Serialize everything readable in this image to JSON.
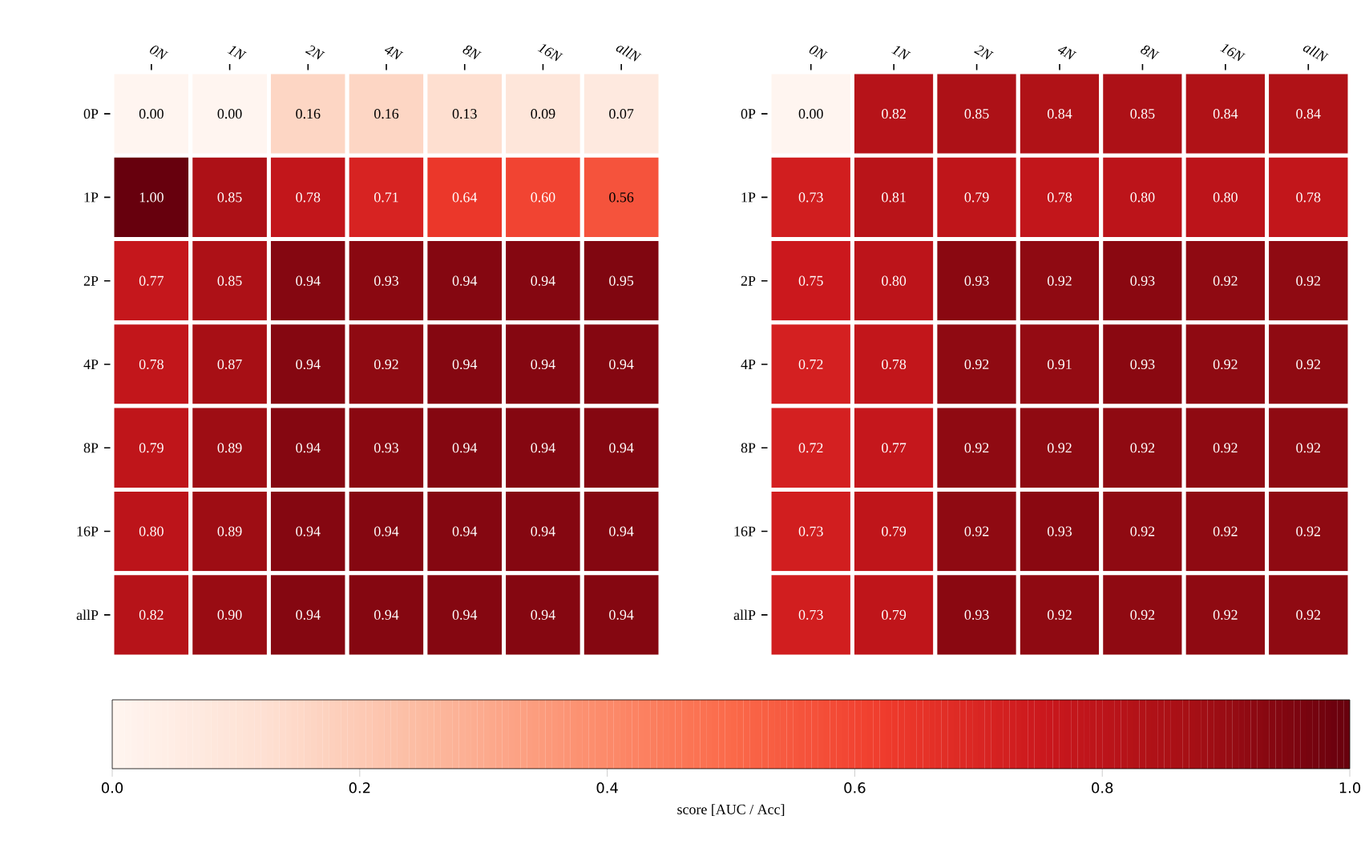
{
  "chart_data": [
    {
      "type": "heatmap",
      "categories": [
        "0N",
        "1N",
        "2N",
        "4N",
        "8N",
        "16N",
        "allN"
      ],
      "y_categories": [
        "0P",
        "1P",
        "2P",
        "4P",
        "8P",
        "16P",
        "allP"
      ],
      "cells": [
        [
          0.0,
          0.0,
          0.16,
          0.16,
          0.13,
          0.09,
          0.07
        ],
        [
          1.0,
          0.85,
          0.78,
          0.71,
          0.64,
          0.6,
          0.56
        ],
        [
          0.77,
          0.85,
          0.94,
          0.93,
          0.94,
          0.94,
          0.95
        ],
        [
          0.78,
          0.87,
          0.94,
          0.92,
          0.94,
          0.94,
          0.94
        ],
        [
          0.79,
          0.89,
          0.94,
          0.93,
          0.94,
          0.94,
          0.94
        ],
        [
          0.8,
          0.89,
          0.94,
          0.94,
          0.94,
          0.94,
          0.94
        ],
        [
          0.82,
          0.9,
          0.94,
          0.94,
          0.94,
          0.94,
          0.94
        ]
      ],
      "cell_labels": [
        [
          "0.00",
          "0.00",
          "0.16",
          "0.16",
          "0.13",
          "0.09",
          "0.07"
        ],
        [
          "1.00",
          "0.85",
          "0.78",
          "0.71",
          "0.64",
          "0.60",
          "0.56"
        ],
        [
          "0.77",
          "0.85",
          "0.94",
          "0.93",
          "0.94",
          "0.94",
          "0.95"
        ],
        [
          "0.78",
          "0.87",
          "0.94",
          "0.92",
          "0.94",
          "0.94",
          "0.94"
        ],
        [
          "0.79",
          "0.89",
          "0.94",
          "0.93",
          "0.94",
          "0.94",
          "0.94"
        ],
        [
          "0.80",
          "0.89",
          "0.94",
          "0.94",
          "0.94",
          "0.94",
          "0.94"
        ],
        [
          "0.82",
          "0.90",
          "0.94",
          "0.94",
          "0.94",
          "0.94",
          "0.94"
        ]
      ],
      "clim": [
        0,
        1
      ],
      "cticks": [
        {
          "value": 0,
          "label": "0.0"
        },
        {
          "value": 0.2,
          "label": "0.2"
        },
        {
          "value": 0.4,
          "label": "0.4"
        },
        {
          "value": 0.6,
          "label": "0.6"
        },
        {
          "value": 0.8,
          "label": "0.8"
        },
        {
          "value": 1,
          "label": "1.0"
        }
      ],
      "clabel": "score [AUC / Acc]"
    },
    {
      "type": "heatmap",
      "categories": [
        "0N",
        "1N",
        "2N",
        "4N",
        "8N",
        "16N",
        "allN"
      ],
      "y_categories": [
        "0P",
        "1P",
        "2P",
        "4P",
        "8P",
        "16P",
        "allP"
      ],
      "cells": [
        [
          0.0,
          0.82,
          0.85,
          0.84,
          0.85,
          0.84,
          0.84
        ],
        [
          0.73,
          0.81,
          0.79,
          0.78,
          0.8,
          0.8,
          0.78
        ],
        [
          0.75,
          0.8,
          0.93,
          0.92,
          0.93,
          0.92,
          0.92
        ],
        [
          0.72,
          0.78,
          0.92,
          0.91,
          0.93,
          0.92,
          0.92
        ],
        [
          0.72,
          0.77,
          0.92,
          0.92,
          0.92,
          0.92,
          0.92
        ],
        [
          0.73,
          0.79,
          0.92,
          0.93,
          0.92,
          0.92,
          0.92
        ],
        [
          0.73,
          0.79,
          0.93,
          0.92,
          0.92,
          0.92,
          0.92
        ]
      ],
      "cell_labels": [
        [
          "0.00",
          "0.82",
          "0.85",
          "0.84",
          "0.85",
          "0.84",
          "0.84"
        ],
        [
          "0.73",
          "0.81",
          "0.79",
          "0.78",
          "0.80",
          "0.80",
          "0.78"
        ],
        [
          "0.75",
          "0.80",
          "0.93",
          "0.92",
          "0.93",
          "0.92",
          "0.92"
        ],
        [
          "0.72",
          "0.78",
          "0.92",
          "0.91",
          "0.93",
          "0.92",
          "0.92"
        ],
        [
          "0.72",
          "0.77",
          "0.92",
          "0.92",
          "0.92",
          "0.92",
          "0.92"
        ],
        [
          "0.73",
          "0.79",
          "0.92",
          "0.93",
          "0.92",
          "0.92",
          "0.92"
        ],
        [
          "0.73",
          "0.79",
          "0.93",
          "0.92",
          "0.92",
          "0.92",
          "0.92"
        ]
      ]
    }
  ]
}
